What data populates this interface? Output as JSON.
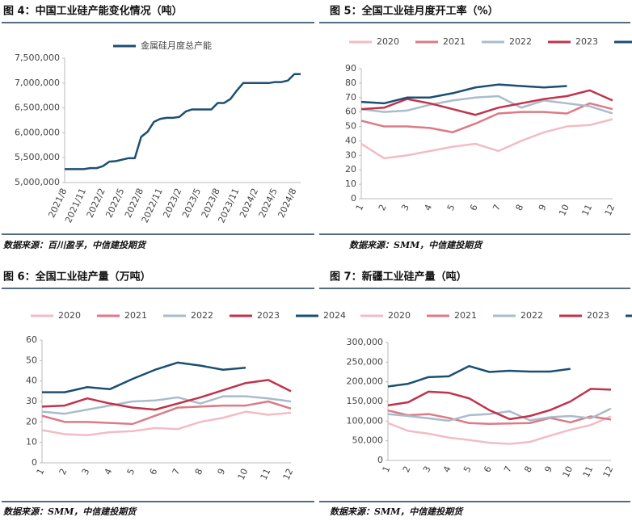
{
  "chart_data": [
    {
      "type": "line",
      "title": "图 4：中国工业硅产能变化情况（吨）",
      "source": "数据来源：百川盈孚，中信建投期货",
      "categories": [
        "2021/8",
        null,
        null,
        "2021/11",
        null,
        null,
        "2022/2",
        null,
        null,
        "2022/5",
        null,
        null,
        "2022/8",
        null,
        null,
        "2022/11",
        null,
        null,
        "2023/2",
        null,
        null,
        "2023/5",
        null,
        null,
        "2023/8",
        null,
        null,
        "2023/11",
        null,
        null,
        "2024/2",
        null,
        null,
        "2024/5",
        null,
        null,
        "2024/8",
        null
      ],
      "series": [
        {
          "name": "金属硅月度总产能",
          "color": "#1b4f72",
          "values": [
            5270000,
            5270000,
            5270000,
            5270000,
            5290000,
            5290000,
            5330000,
            5420000,
            5430000,
            5460000,
            5490000,
            5490000,
            5920000,
            6020000,
            6220000,
            6280000,
            6300000,
            6300000,
            6320000,
            6430000,
            6470000,
            6470000,
            6470000,
            6470000,
            6600000,
            6600000,
            6680000,
            6850000,
            7000000,
            7000000,
            7000000,
            7000000,
            7000000,
            7020000,
            7020000,
            7050000,
            7180000,
            7180000
          ]
        }
      ],
      "ylim": [
        5000000,
        7500000
      ],
      "yticks": [
        {
          "value": 5000000,
          "label": "5,000,000"
        },
        {
          "value": 5500000,
          "label": "5,500,000"
        },
        {
          "value": 6000000,
          "label": "6,000,000"
        },
        {
          "value": 6500000,
          "label": "6,500,000"
        },
        {
          "value": 7000000,
          "label": "7,000,000"
        },
        {
          "value": 7500000,
          "label": "7,500,000"
        }
      ]
    },
    {
      "type": "line",
      "title": "图 5：全国工业硅月度开工率（%）",
      "source": "数据来源：SMM，中信建投期货",
      "categories": [
        "1",
        "2",
        "3",
        "4",
        "5",
        "6",
        "7",
        "8",
        "9",
        "10",
        "11",
        "12"
      ],
      "series": [
        {
          "name": "2020",
          "color": "#f2bcc4",
          "values": [
            38,
            28,
            30,
            33,
            36,
            38,
            33,
            40,
            46,
            50,
            51,
            55
          ]
        },
        {
          "name": "2021",
          "color": "#dc7a86",
          "values": [
            54,
            50,
            50,
            49,
            46,
            52,
            59,
            60,
            60,
            59,
            66,
            62
          ]
        },
        {
          "name": "2022",
          "color": "#a9bccb",
          "values": [
            62,
            60,
            61,
            65,
            68,
            70,
            71,
            63,
            68,
            66,
            64,
            59
          ]
        },
        {
          "name": "2023",
          "color": "#c0334a",
          "values": [
            62,
            63,
            69,
            66,
            62,
            58,
            63,
            66,
            69,
            71,
            75,
            68
          ]
        },
        {
          "name": "2024",
          "color": "#1b4f72",
          "values": [
            67,
            66,
            70,
            70,
            73,
            77,
            79,
            78,
            77,
            78,
            null,
            null
          ]
        }
      ],
      "ylim": [
        0,
        90
      ],
      "yticks": [
        0,
        10,
        20,
        30,
        40,
        50,
        60,
        70,
        80,
        90
      ]
    },
    {
      "type": "line",
      "title": "图 6：全国工业硅产量（万吨）",
      "source": "数据来源：SMM，中信建投期货",
      "categories": [
        "1",
        "2",
        "3",
        "4",
        "5",
        "6",
        "7",
        "8",
        "9",
        "10",
        "11",
        "12"
      ],
      "series": [
        {
          "name": "2020",
          "color": "#f2bcc4",
          "values": [
            16,
            14,
            13.5,
            15,
            15.5,
            17,
            16.5,
            20,
            22,
            25,
            23.5,
            24.5
          ]
        },
        {
          "name": "2021",
          "color": "#dc7a86",
          "values": [
            23,
            20,
            20,
            19.5,
            19,
            23,
            27,
            27.5,
            28,
            28,
            30,
            26.5
          ]
        },
        {
          "name": "2022",
          "color": "#a9bccb",
          "values": [
            25,
            24,
            26,
            28,
            30,
            30.5,
            32,
            29,
            32.5,
            32.5,
            31.5,
            30
          ]
        },
        {
          "name": "2023",
          "color": "#c0334a",
          "values": [
            27.5,
            28,
            31.5,
            29,
            27,
            26,
            29,
            32,
            35.5,
            39,
            40.5,
            35
          ]
        },
        {
          "name": "2024",
          "color": "#1b4f72",
          "values": [
            34.5,
            34.5,
            37,
            36,
            41,
            45.5,
            49,
            47.5,
            45.5,
            46.5,
            null,
            null
          ]
        }
      ],
      "ylim": [
        0,
        60
      ],
      "yticks": [
        0,
        10,
        20,
        30,
        40,
        50,
        60
      ]
    },
    {
      "type": "line",
      "title": "图 7：新疆工业硅产量（吨）",
      "source": "数据来源：SMM，中信建投期货",
      "categories": [
        "1",
        "2",
        "3",
        "4",
        "5",
        "6",
        "7",
        "8",
        "9",
        "10",
        "11",
        "12"
      ],
      "series": [
        {
          "name": "2020",
          "color": "#f2bcc4",
          "values": [
            95000,
            75000,
            68000,
            58000,
            52000,
            45000,
            42000,
            47000,
            63000,
            78000,
            90000,
            112000
          ]
        },
        {
          "name": "2021",
          "color": "#dc7a86",
          "values": [
            127000,
            115000,
            118000,
            108000,
            95000,
            93000,
            94000,
            95000,
            108000,
            97000,
            112000,
            104000
          ]
        },
        {
          "name": "2022",
          "color": "#a9bccb",
          "values": [
            118000,
            113000,
            107000,
            101000,
            115000,
            118000,
            125000,
            102000,
            110000,
            113000,
            107000,
            132000
          ]
        },
        {
          "name": "2023",
          "color": "#c0334a",
          "values": [
            140000,
            148000,
            175000,
            172000,
            158000,
            128000,
            105000,
            113000,
            128000,
            150000,
            182000,
            180000
          ]
        },
        {
          "name": "2024",
          "color": "#1b4f72",
          "values": [
            188000,
            195000,
            212000,
            214000,
            240000,
            225000,
            228000,
            226000,
            226000,
            233000,
            null,
            null
          ]
        }
      ],
      "ylim": [
        0,
        300000
      ],
      "yticks": [
        0,
        {
          "value": 50000,
          "label": "50,000"
        },
        {
          "value": 100000,
          "label": "100,000"
        },
        {
          "value": 150000,
          "label": "150,000"
        },
        {
          "value": 200000,
          "label": "200,000"
        },
        {
          "value": 250000,
          "label": "250,000"
        },
        {
          "value": 300000,
          "label": "300,000"
        }
      ]
    }
  ]
}
